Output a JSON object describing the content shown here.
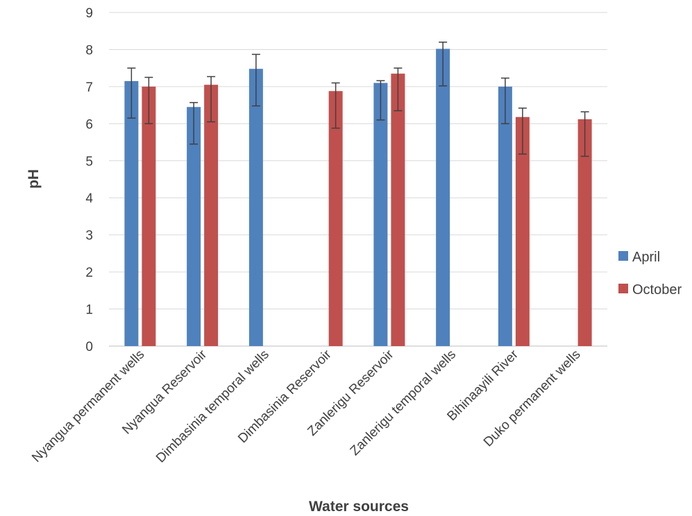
{
  "chart_data": {
    "type": "bar",
    "title": "",
    "xlabel": "Water sources",
    "ylabel": "pH",
    "ylim": [
      0,
      9
    ],
    "yticks": [
      0,
      1,
      2,
      3,
      4,
      5,
      6,
      7,
      8,
      9
    ],
    "grid": true,
    "legend_position": "right",
    "error_bars": true,
    "categories": [
      "Nyangua permanent wells",
      "Nyangua Reservoir",
      "Dimbasinia temporal wells",
      "Dimbasinia Reservoir",
      "Zanlerigu Reservoir",
      "Zanlerigu temporal wells",
      "Bihinaayili River",
      "Duko permanent wells"
    ],
    "series": [
      {
        "name": "April",
        "color": "#4f81bd",
        "values": [
          7.15,
          6.45,
          7.48,
          null,
          7.1,
          8.02,
          7.0,
          null
        ],
        "err_low": [
          6.15,
          5.45,
          6.48,
          null,
          6.1,
          7.02,
          6.0,
          null
        ],
        "err_high": [
          7.5,
          6.57,
          7.87,
          null,
          7.16,
          8.2,
          7.23,
          null
        ]
      },
      {
        "name": "October",
        "color": "#c0504d",
        "values": [
          7.0,
          7.05,
          null,
          6.88,
          7.35,
          null,
          6.18,
          6.12
        ],
        "err_low": [
          6.0,
          6.05,
          null,
          5.88,
          6.35,
          null,
          5.18,
          5.12
        ],
        "err_high": [
          7.25,
          7.27,
          null,
          7.1,
          7.5,
          null,
          6.42,
          6.32
        ]
      }
    ]
  }
}
